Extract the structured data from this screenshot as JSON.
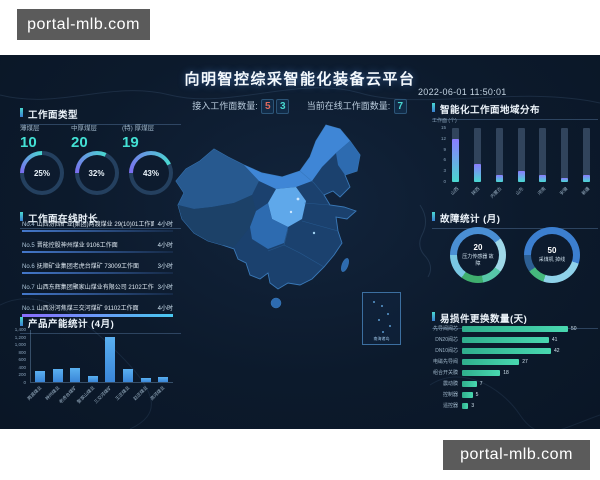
{
  "watermark": {
    "text": "portal-mlb.com"
  },
  "header": {
    "title": "向明智控综采智能化装备云平台",
    "datetime": "2022-06-01 11:50:01",
    "connected_label": "接入工作面数量:",
    "online_label": "当前在线工作面数量:",
    "connected_digits": [
      {
        "text": "5",
        "color": "#e06a5e"
      },
      {
        "text": "3",
        "color": "#49d8d0"
      }
    ],
    "online_digits": [
      {
        "text": "7",
        "color": "#49d8d0"
      }
    ]
  },
  "panels": {
    "workface_type": {
      "title": "工作面类型",
      "items": [
        {
          "label": "薄煤层",
          "value": "10",
          "percent": "25%",
          "pct": 25
        },
        {
          "label": "中厚煤层",
          "value": "20",
          "percent": "32%",
          "pct": 32
        },
        {
          "label": "(特) 厚煤层",
          "value": "19",
          "percent": "43%",
          "pct": 43
        }
      ]
    },
    "online_duration": {
      "title": "工作面在线时长",
      "rows": [
        {
          "rank": "No.4",
          "name": "山西汾西矿业(集团)两渡煤业 29(10)01工作面",
          "value": "4小时",
          "highlight": false
        },
        {
          "rank": "No.5",
          "name": "晋能控股神州煤业 9106工作面",
          "value": "4小时",
          "highlight": false
        },
        {
          "rank": "No.6",
          "name": "抚顺矿业集团老虎台煤矿 73009工作面",
          "value": "3小时",
          "highlight": false
        },
        {
          "rank": "No.7",
          "name": "山西东辉集团聚家山煤业有限公司 2102工作面",
          "value": "3小时",
          "highlight": false
        },
        {
          "rank": "No.1",
          "name": "山西汾河焦煤三交河煤矿 91102工作面",
          "value": "4小时",
          "highlight": true
        }
      ]
    },
    "capacity": {
      "title": "产品产能统计 (4月)",
      "chart": {
        "type": "bar",
        "categories": [
          "两渡煤业",
          "神州煤业",
          "老虎台煤矿",
          "聚家山煤业",
          "三交河煤矿",
          "王庄煤业",
          "赵庄煤业",
          "高河煤业"
        ],
        "values": [
          300,
          350,
          380,
          150,
          1200,
          350,
          120,
          130
        ],
        "y_ticks": [
          "1,400",
          "1,200",
          "1,000",
          "800",
          "600",
          "400",
          "200",
          "0"
        ],
        "ymax": 1400,
        "bar_color": "#4aa0e8"
      }
    },
    "region": {
      "title": "智能化工作面地域分布",
      "unit_label": "工作面 (个)",
      "chart": {
        "type": "bar",
        "categories": [
          "山西",
          "陕西",
          "内蒙古",
          "山东",
          "河南",
          "安徽",
          "新疆"
        ],
        "values": [
          12,
          5,
          2,
          3,
          2,
          1,
          2
        ],
        "y_ticks": [
          "15",
          "12",
          "9",
          "6",
          "3",
          "0"
        ],
        "ymax": 15
      }
    },
    "fault": {
      "title": "故障统计 (月)",
      "donuts": [
        {
          "value": "20",
          "label": "压力传感器 故障",
          "segments": [
            {
              "color": "#4a8fd4",
              "pct": 40
            },
            {
              "color": "#9fd8e8",
              "pct": 20
            },
            {
              "color": "#57c7a8",
              "pct": 12
            },
            {
              "color": "#3fae6e",
              "pct": 13
            },
            {
              "color": "#79c7e3",
              "pct": 15
            }
          ]
        },
        {
          "value": "50",
          "label": "采煤机 掉线",
          "segments": [
            {
              "color": "#3c7fd0",
              "pct": 55
            },
            {
              "color": "#8fd2ea",
              "pct": 25
            },
            {
              "color": "#45b97c",
              "pct": 10
            },
            {
              "color": "#2d5f94",
              "pct": 10
            }
          ]
        }
      ]
    },
    "wear": {
      "title": "易损件更换数量(天)",
      "chart": {
        "type": "bar-horizontal",
        "categories": [
          "先导阀阀芯",
          "DN20阀芯",
          "DN10阀芯",
          "电磁先导阀",
          "组合开关膜",
          "震动膜",
          "控制器",
          "遥控器"
        ],
        "values": [
          50,
          41,
          42,
          27,
          18,
          7,
          5,
          3
        ],
        "xmax": 50,
        "bar_color": "#3ec9a0"
      }
    }
  },
  "map": {
    "inset_label": "南海诸岛"
  }
}
